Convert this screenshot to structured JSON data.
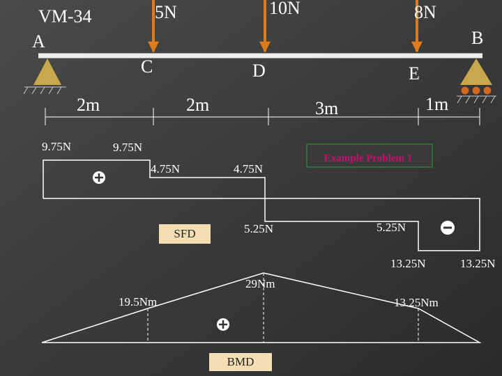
{
  "header": {
    "code": "VM-34"
  },
  "beam": {
    "supports": [
      "A",
      "B"
    ],
    "points": [
      "C",
      "D",
      "E"
    ],
    "loads": [
      "5N",
      "10N",
      "8N"
    ],
    "spans": [
      "2m",
      "2m",
      "3m",
      "1m"
    ]
  },
  "sfd": {
    "name": "SFD",
    "note": "Example Problem 1",
    "labels": [
      "9.75N",
      "9.75N",
      "4.75N",
      "4.75N",
      "5.25N",
      "5.25N",
      "13.25N",
      "13.25N"
    ]
  },
  "bmd": {
    "name": "BMD",
    "labels": [
      "29Nm",
      "19.5Nm",
      "13.25Nm"
    ]
  }
}
